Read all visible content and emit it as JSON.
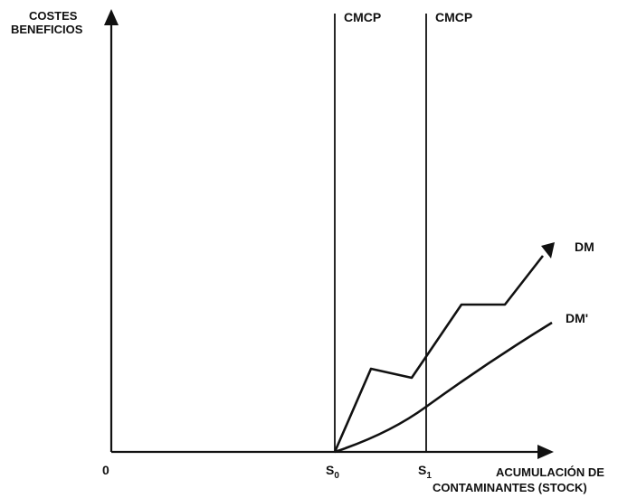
{
  "y_axis_label": [
    "COSTES",
    "BENEFICIOS"
  ],
  "x_axis_label": [
    "ACUMULACIÓN DE",
    "CONTAMINANTES (STOCK)"
  ],
  "origin_label": "0",
  "markers": [
    {
      "base": "S",
      "sub": "0"
    },
    {
      "base": "S",
      "sub": "1"
    }
  ],
  "vertical_lines": [
    {
      "label": "CMCP"
    },
    {
      "label": "CMCP"
    }
  ],
  "curves": [
    {
      "label": "DM",
      "style": "jagged-with-arrow"
    },
    {
      "label": "DM'",
      "style": "smooth"
    }
  ],
  "colors": {
    "ink": "#111111",
    "background": "#ffffff"
  }
}
